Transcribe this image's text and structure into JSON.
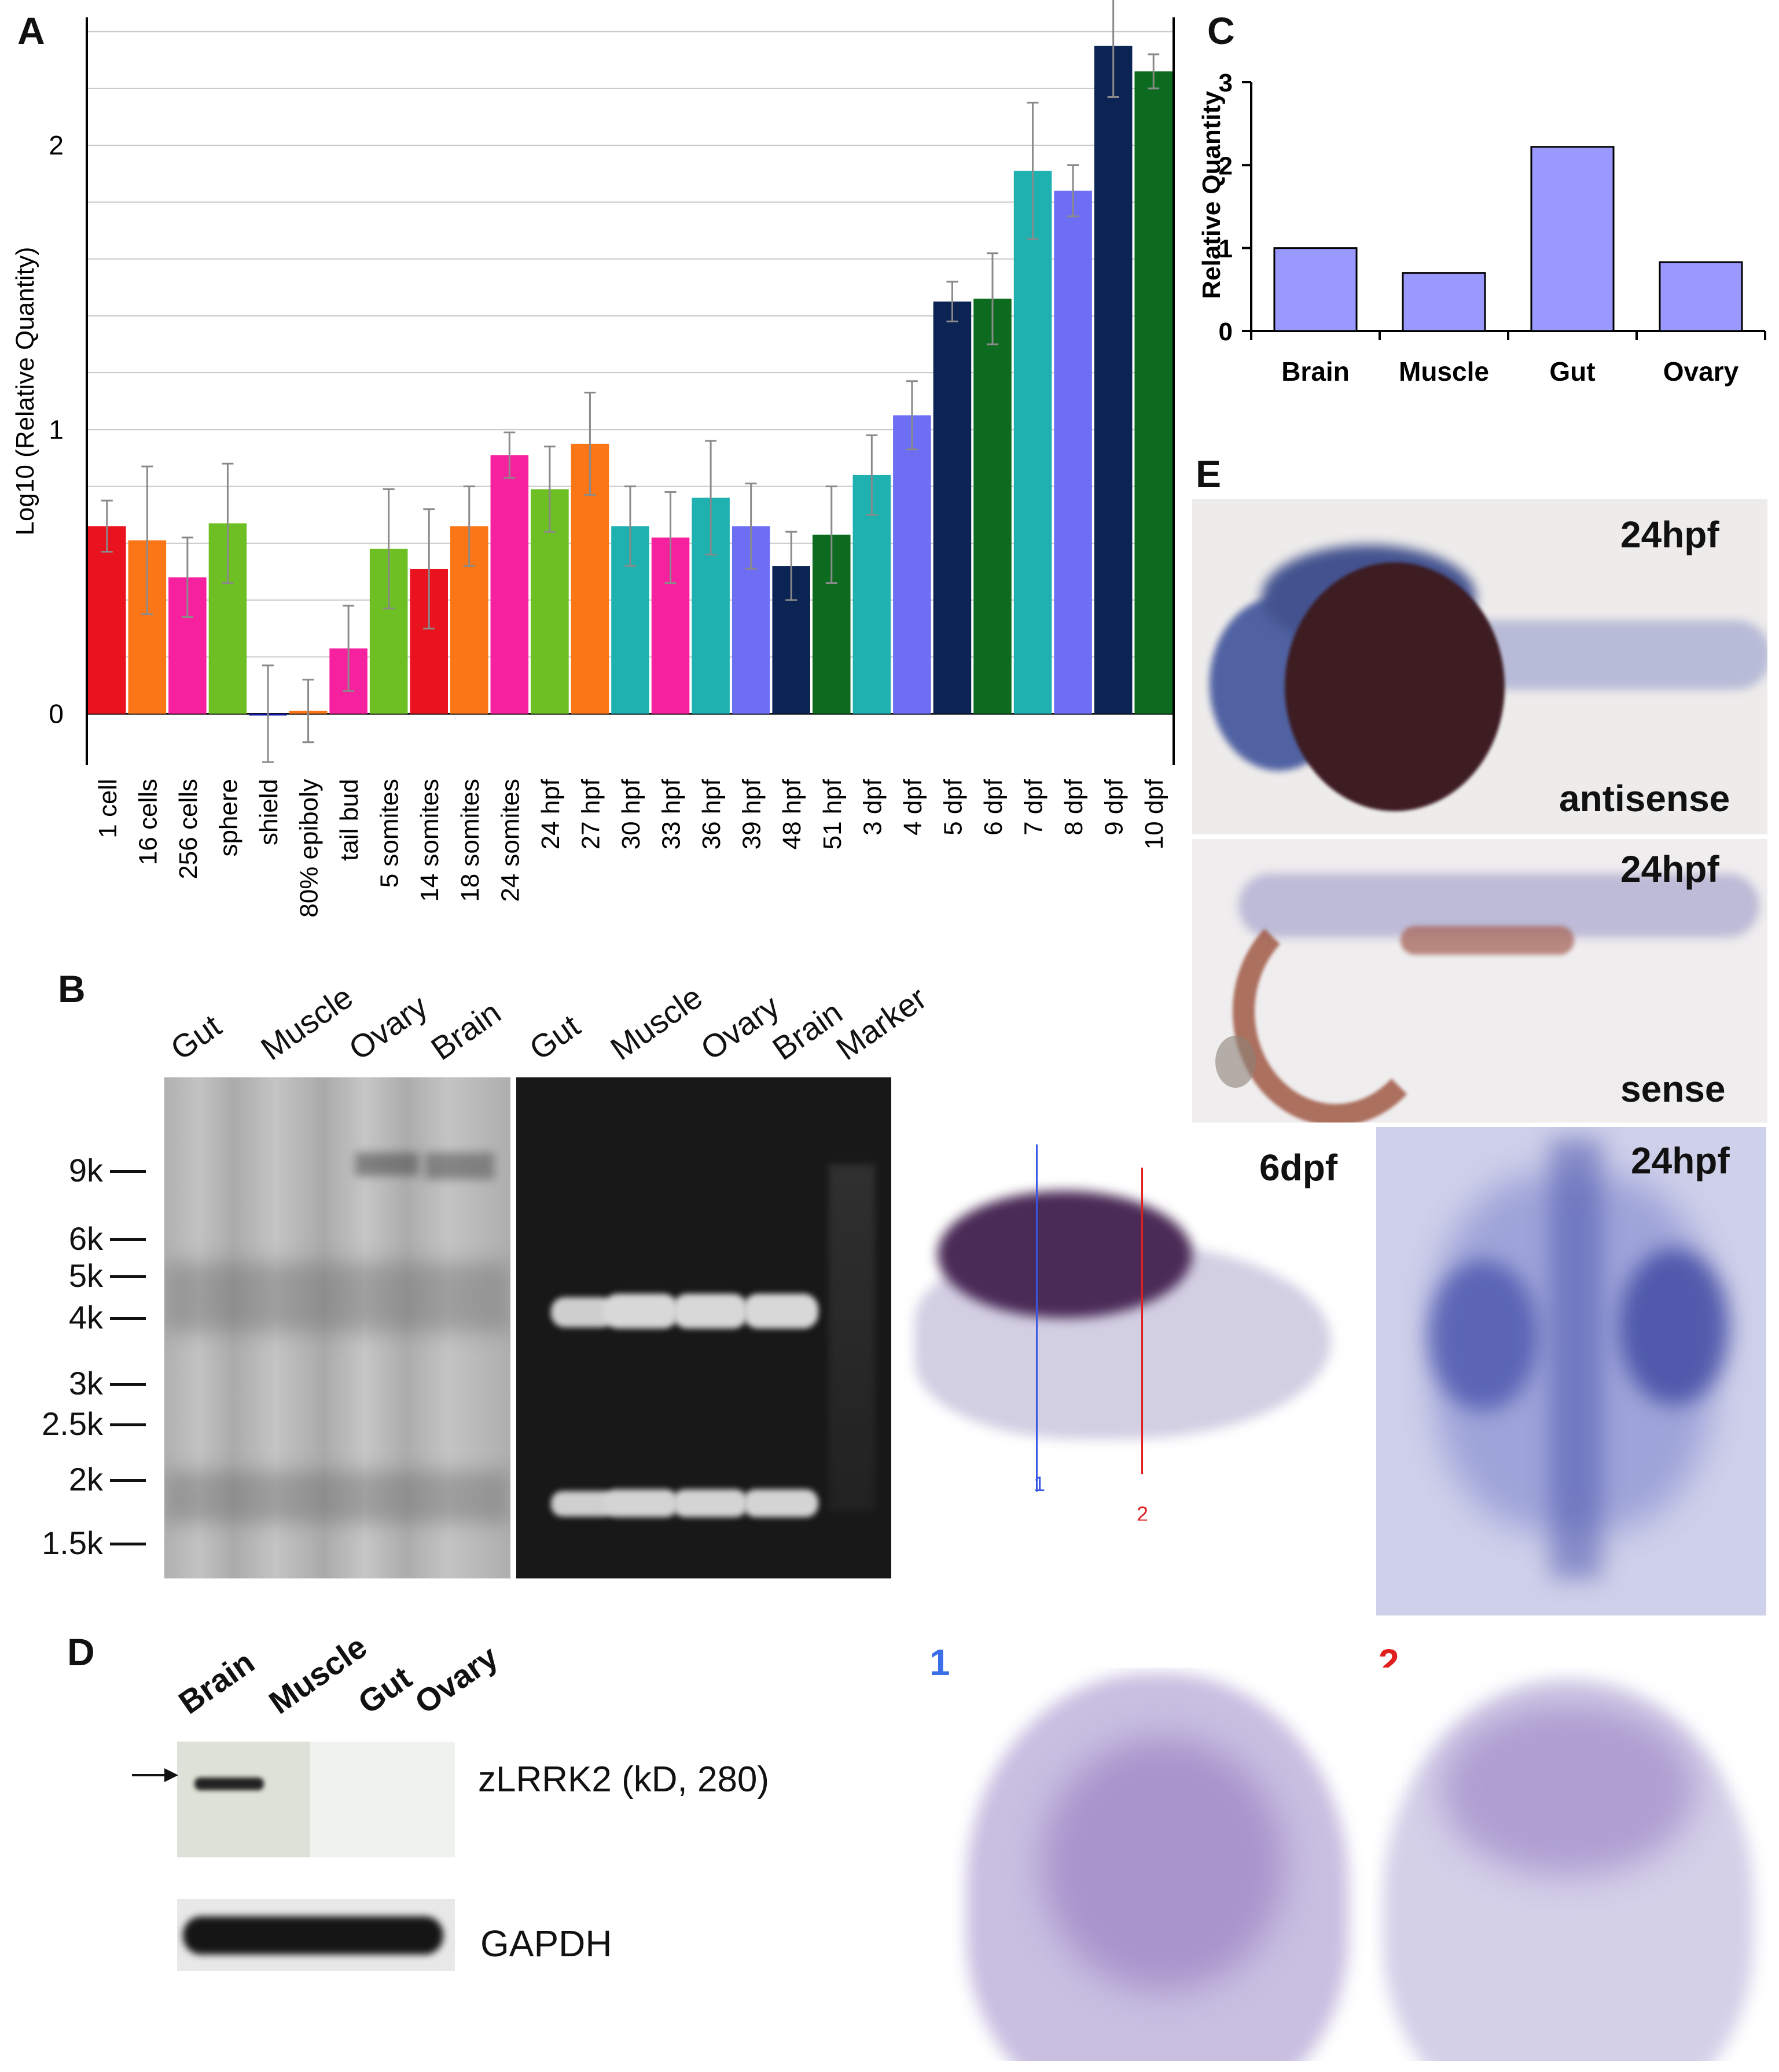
{
  "figure": {
    "panels": {
      "a": "A",
      "b": "B",
      "c": "C",
      "d": "D",
      "e": "E"
    }
  },
  "chart_data": [
    {
      "id": "A",
      "type": "bar",
      "ylabel": "Log10 (Relative Quantity)",
      "ylim": [
        -0.18,
        2.45
      ],
      "yticks": [
        0,
        1,
        2
      ],
      "grid": true,
      "categories": [
        "1 cell",
        "16 cells",
        "256 cells",
        "sphere",
        "shield",
        "80% epiboly",
        "tail bud",
        "5 somites",
        "14 somites",
        "18 somites",
        "24 somites",
        "24 hpf",
        "27 hpf",
        "30 hpf",
        "33 hpf",
        "36 hpf",
        "39 hpf",
        "48 hpf",
        "51 hpf",
        "3 dpf",
        "4 dpf",
        "5 dpf",
        "6 dpf",
        "7 dpf",
        "8 dpf",
        "9 dpf",
        "10 dpf"
      ],
      "values": [
        0.66,
        0.61,
        0.48,
        0.67,
        0.0,
        0.01,
        0.23,
        0.58,
        0.51,
        0.66,
        0.91,
        0.79,
        0.95,
        0.66,
        0.62,
        0.76,
        0.66,
        0.52,
        0.63,
        0.84,
        1.05,
        1.45,
        1.46,
        1.91,
        1.84,
        2.35,
        2.26
      ],
      "errors": [
        0.09,
        0.26,
        0.14,
        0.21,
        0.17,
        0.11,
        0.15,
        0.21,
        0.21,
        0.14,
        0.08,
        0.15,
        0.18,
        0.14,
        0.16,
        0.2,
        0.15,
        0.12,
        0.17,
        0.14,
        0.12,
        0.07,
        0.16,
        0.24,
        0.09,
        0.18,
        0.06
      ],
      "colors": [
        "#e8131e",
        "#fb7616",
        "#f6219e",
        "#6ebf23",
        "#1a1aa0",
        "#fb7616",
        "#f6219e",
        "#6ebf23",
        "#e8131e",
        "#fb7616",
        "#f6219e",
        "#6ebf23",
        "#fb7616",
        "#1fb0b0",
        "#f6219e",
        "#1fb0b0",
        "#6e6ef5",
        "#0c2454",
        "#0c6b1e",
        "#1fb0b0",
        "#6e6ef5",
        "#0c2454",
        "#0c6b1e",
        "#1fb0b0",
        "#6e6ef5",
        "#0c2454",
        "#0c6b1e"
      ]
    },
    {
      "id": "C",
      "type": "bar",
      "ylabel": "Relative Quantity",
      "ylim": [
        0,
        3
      ],
      "yticks": [
        0,
        1,
        2,
        3
      ],
      "categories": [
        "Brain",
        "Muscle",
        "Gut",
        "Ovary"
      ],
      "values": [
        1.0,
        0.7,
        2.22,
        0.83
      ],
      "color": "#9999ff"
    }
  ],
  "panel_b": {
    "lanes_left": [
      "Gut",
      "Muscle",
      "Ovary",
      "Brain"
    ],
    "lanes_right": [
      "Gut",
      "Muscle",
      "Ovary",
      "Brain",
      "Marker"
    ],
    "markers": [
      "9k",
      "6k",
      "5k",
      "4k",
      "3k",
      "2.5k",
      "2k",
      "1.5k"
    ]
  },
  "panel_d": {
    "lanes": [
      "Brain",
      "Muscle",
      "Gut",
      "Ovary"
    ],
    "label_top": "zLRRK2 (kD, 280)",
    "label_bottom": "GAPDH"
  },
  "panel_e": {
    "top_stage": "24hpf",
    "top_probe": "antisense",
    "mid_stage": "24hpf",
    "mid_probe": "sense",
    "dorsal_stage": "24hpf",
    "larva_stage": "6dpf",
    "section_line_1": "1",
    "section_line_2": "2",
    "section_label_1": "1",
    "section_label_2": "2"
  }
}
